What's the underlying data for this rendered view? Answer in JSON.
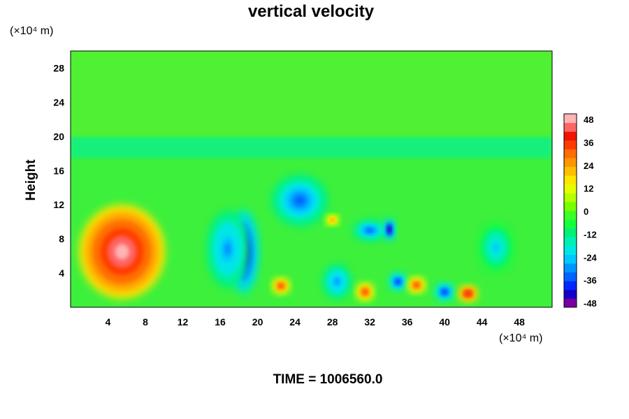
{
  "chart_data": {
    "type": "heatmap",
    "title": "vertical velocity",
    "ylabel": "Height",
    "x_unit": "(×10⁴ m)",
    "y_unit": "(×10⁴ m)",
    "xlim": [
      0,
      51.5
    ],
    "ylim": [
      0,
      30
    ],
    "x_ticks": [
      4,
      8,
      12,
      16,
      20,
      24,
      28,
      32,
      36,
      40,
      44,
      48
    ],
    "y_ticks": [
      4,
      8,
      12,
      16,
      20,
      24,
      28
    ],
    "time_label": "TIME = 1006560.0",
    "colorbar": {
      "min": -48,
      "max": 48,
      "ticks": [
        48,
        36,
        24,
        12,
        0,
        -12,
        -24,
        -36,
        -48
      ],
      "colors": [
        "#7a00a0",
        "#1400c8",
        "#0028ff",
        "#0064ff",
        "#0096ff",
        "#00c8ff",
        "#00e6e6",
        "#00f0b4",
        "#00f078",
        "#14ff3c",
        "#3cff28",
        "#78ff00",
        "#b4ff00",
        "#e6ff00",
        "#ffe600",
        "#ffbe00",
        "#ff9600",
        "#ff6e00",
        "#ff3c00",
        "#f01400",
        "#ff6464",
        "#ffb4b4"
      ]
    },
    "features": [
      {
        "x": 5.5,
        "y": 6.5,
        "rx": 4.6,
        "ry": 5.5,
        "value": 48
      },
      {
        "x": 18.5,
        "y": 6.5,
        "rx": 1.6,
        "ry": 5.0,
        "value": -48
      },
      {
        "x": 16.8,
        "y": 6.8,
        "rx": 2.2,
        "ry": 4.5,
        "value": -30
      },
      {
        "x": 24.5,
        "y": 12.5,
        "rx": 3.0,
        "ry": 3.0,
        "value": -34
      },
      {
        "x": 28.5,
        "y": 3.0,
        "rx": 1.5,
        "ry": 2.0,
        "value": -30
      },
      {
        "x": 32.0,
        "y": 9.0,
        "rx": 1.8,
        "ry": 1.2,
        "value": -36
      },
      {
        "x": 34.1,
        "y": 9.1,
        "rx": 0.6,
        "ry": 1.3,
        "value": -48
      },
      {
        "x": 35.0,
        "y": 3.0,
        "rx": 0.9,
        "ry": 1.0,
        "value": -40
      },
      {
        "x": 40.0,
        "y": 1.8,
        "rx": 1.0,
        "ry": 1.0,
        "value": -40
      },
      {
        "x": 45.5,
        "y": 7.0,
        "rx": 1.8,
        "ry": 2.8,
        "value": -24
      },
      {
        "x": 22.5,
        "y": 2.5,
        "rx": 0.9,
        "ry": 0.9,
        "value": 36
      },
      {
        "x": 31.5,
        "y": 1.8,
        "rx": 0.9,
        "ry": 1.0,
        "value": 36
      },
      {
        "x": 37.0,
        "y": 2.6,
        "rx": 0.9,
        "ry": 0.9,
        "value": 36
      },
      {
        "x": 42.5,
        "y": 1.6,
        "rx": 1.0,
        "ry": 0.9,
        "value": 42
      },
      {
        "x": 28.0,
        "y": 10.2,
        "rx": 0.7,
        "ry": 0.6,
        "value": 24
      }
    ]
  }
}
